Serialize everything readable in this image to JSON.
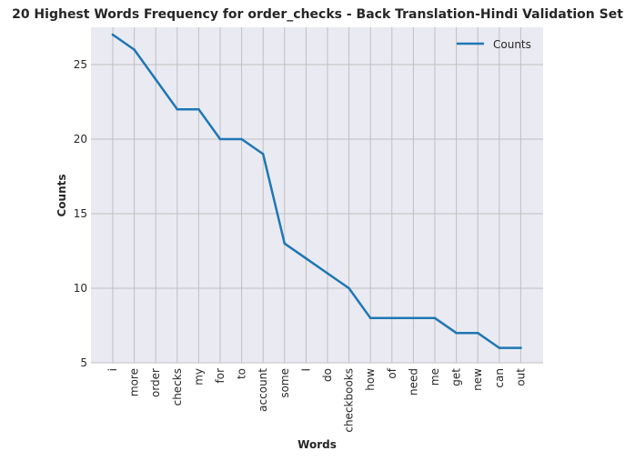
{
  "chart_data": {
    "type": "line",
    "title": "20 Highest Words Frequency for order_checks - Back Translation-Hindi Validation Set",
    "xlabel": "Words",
    "ylabel": "Counts",
    "categories": [
      "i",
      "more",
      "order",
      "checks",
      "my",
      "for",
      "to",
      "account",
      "some",
      "I",
      "do",
      "checkbooks",
      "how",
      "of",
      "need",
      "me",
      "get",
      "new",
      "can",
      "out"
    ],
    "series": [
      {
        "name": "Counts",
        "values": [
          27,
          26,
          24,
          22,
          22,
          20,
          20,
          19,
          13,
          12,
          11,
          10,
          8,
          8,
          8,
          8,
          7,
          7,
          6,
          6
        ]
      }
    ],
    "ylim": [
      5,
      27.5
    ],
    "yticks": [
      5,
      10,
      15,
      20,
      25
    ],
    "grid": true,
    "legend_position": "upper right",
    "colors": {
      "line": "#1f77b4",
      "plot_background": "#eaeaf2",
      "grid": "#c0c0c0"
    }
  }
}
